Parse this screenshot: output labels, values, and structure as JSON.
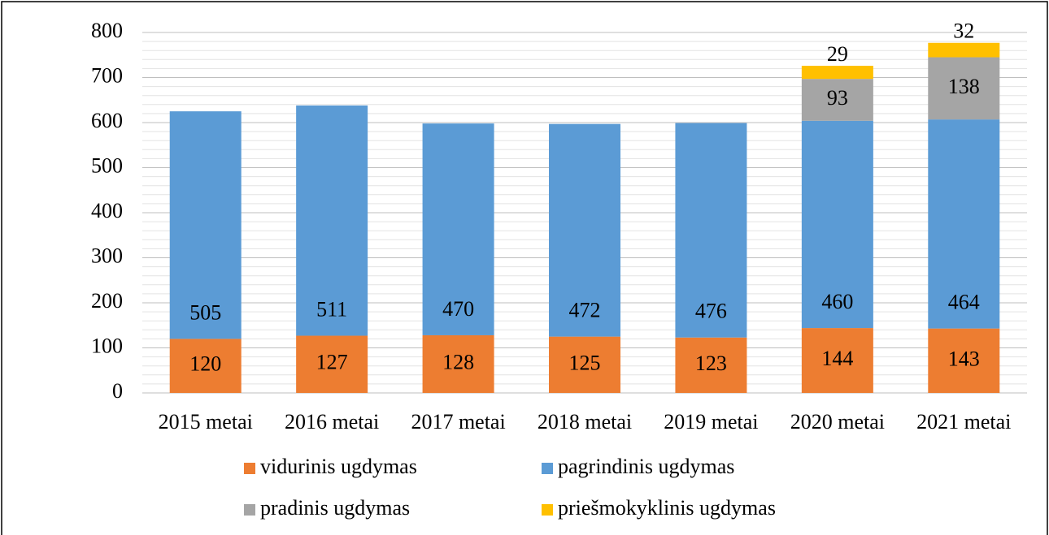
{
  "chart_data": {
    "type": "stacked_bar",
    "categories": [
      "2015 metai",
      "2016 metai",
      "2017 metai",
      "2018 metai",
      "2019 metai",
      "2020 metai",
      "2021 metai"
    ],
    "series": [
      {
        "name": "vidurinis ugdymas",
        "color": "#ed7d31",
        "values": [
          120,
          127,
          128,
          125,
          123,
          144,
          143
        ]
      },
      {
        "name": "pagrindinis ugdymas",
        "color": "#5b9bd5",
        "values": [
          505,
          511,
          470,
          472,
          476,
          460,
          464
        ]
      },
      {
        "name": "pradinis ugdymas",
        "color": "#a5a5a5",
        "values": [
          null,
          null,
          null,
          null,
          null,
          93,
          138
        ]
      },
      {
        "name": "priešmokyklinis ugdymas",
        "color": "#ffc000",
        "values": [
          null,
          null,
          null,
          null,
          null,
          29,
          32
        ]
      }
    ],
    "ylim": [
      0,
      800
    ],
    "yticks": [
      0,
      100,
      200,
      300,
      400,
      500,
      600,
      700,
      800
    ],
    "minor_yticks": [
      20,
      40,
      60,
      80,
      120,
      140,
      160,
      180,
      220,
      240,
      260,
      280,
      320,
      340,
      360,
      380,
      420,
      440,
      460,
      480,
      520,
      540,
      560,
      580,
      620,
      640,
      660,
      680,
      720,
      740,
      760,
      780
    ],
    "grid": true,
    "legend": "bottom"
  }
}
